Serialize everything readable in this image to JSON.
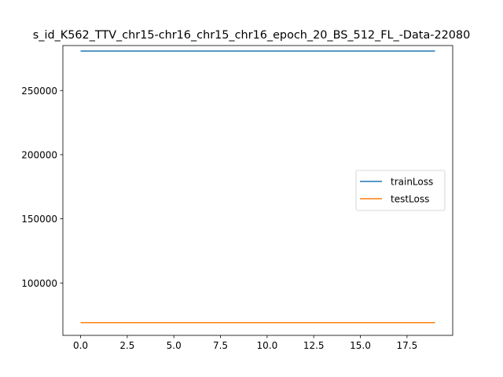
{
  "chart_data": {
    "type": "line",
    "title": "s_id_K562_TTV_chr15-chr16_chr15_chr16_epoch_20_BS_512_FL_-Data-22080",
    "xlabel": "",
    "ylabel": "",
    "x": [
      0,
      1,
      2,
      3,
      4,
      5,
      6,
      7,
      8,
      9,
      10,
      11,
      12,
      13,
      14,
      15,
      16,
      17,
      18,
      19
    ],
    "xlim": [
      -0.95,
      19.95
    ],
    "ylim": [
      59150,
      285050
    ],
    "xticks": [
      0.0,
      2.5,
      5.0,
      7.5,
      10.0,
      12.5,
      15.0,
      17.5
    ],
    "xtick_labels": [
      "0.0",
      "2.5",
      "5.0",
      "7.5",
      "10.0",
      "12.5",
      "15.0",
      "17.5"
    ],
    "yticks": [
      100000,
      150000,
      200000,
      250000
    ],
    "ytick_labels": [
      "100000",
      "150000",
      "200000",
      "250000"
    ],
    "grid": false,
    "legend_position": "center-right",
    "series": [
      {
        "name": "trainLoss",
        "color": "#1f77b4",
        "values": [
          280800,
          280800,
          280800,
          280800,
          280800,
          280800,
          280800,
          280800,
          280800,
          280800,
          280800,
          280800,
          280800,
          280800,
          280800,
          280800,
          280800,
          280800,
          280800,
          280800
        ]
      },
      {
        "name": "testLoss",
        "color": "#ff7f0e",
        "values": [
          69100,
          69100,
          69100,
          69100,
          69100,
          69100,
          69100,
          69100,
          69100,
          69100,
          69100,
          69100,
          69100,
          69100,
          69100,
          69100,
          69100,
          69100,
          69100,
          69100
        ]
      }
    ]
  }
}
